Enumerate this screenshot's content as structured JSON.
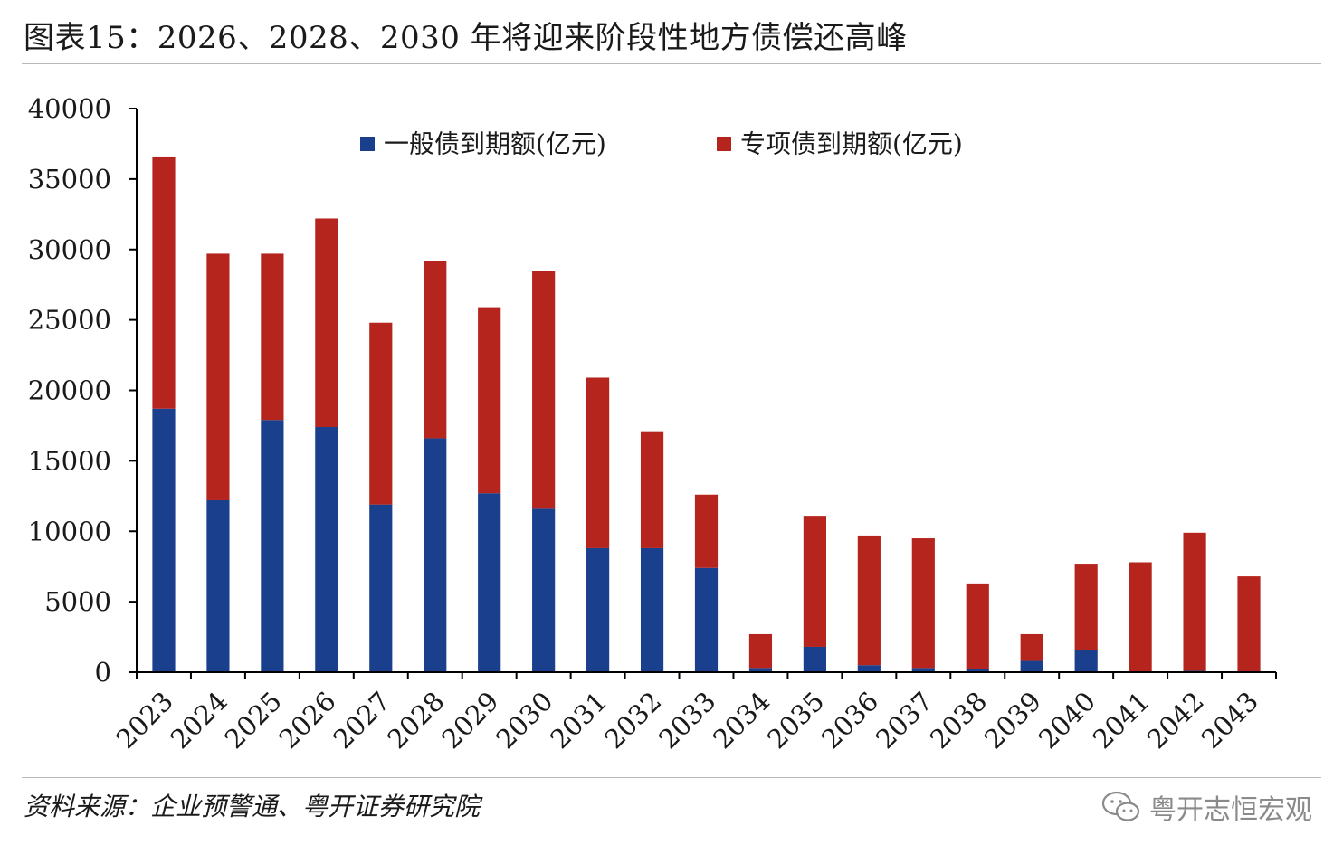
{
  "figure": {
    "title": "图表15：2026、2028、2030 年将迎来阶段性地方债偿还高峰",
    "source": "资料来源：企业预警通、粤开证券研究院",
    "watermark": {
      "icon": "wechat-icon",
      "text": "粤开志恒宏观"
    }
  },
  "chart_data": {
    "type": "bar",
    "stacked": true,
    "categories": [
      "2023",
      "2024",
      "2025",
      "2026",
      "2027",
      "2028",
      "2029",
      "2030",
      "2031",
      "2032",
      "2033",
      "2034",
      "2035",
      "2036",
      "2037",
      "2038",
      "2039",
      "2040",
      "2041",
      "2042",
      "2043"
    ],
    "series": [
      {
        "name": "一般债到期额(亿元)",
        "color": "#1a3f8c",
        "values": [
          18700,
          12200,
          17900,
          17400,
          11900,
          16600,
          12700,
          11600,
          8800,
          8800,
          7400,
          300,
          1800,
          500,
          300,
          200,
          800,
          1600,
          0,
          100,
          0
        ]
      },
      {
        "name": "专项债到期额(亿元)",
        "color": "#b5251d",
        "values": [
          17900,
          17500,
          11800,
          14800,
          12900,
          12600,
          13200,
          16900,
          12100,
          8300,
          5200,
          2400,
          9300,
          9200,
          9200,
          6100,
          1900,
          6100,
          7800,
          9800,
          6800
        ]
      }
    ],
    "ylim": [
      0,
      40000
    ],
    "yticks": [
      0,
      5000,
      10000,
      15000,
      20000,
      25000,
      30000,
      35000,
      40000
    ],
    "legend_position": "top-center",
    "grid": false,
    "xlabel": "",
    "ylabel": ""
  }
}
